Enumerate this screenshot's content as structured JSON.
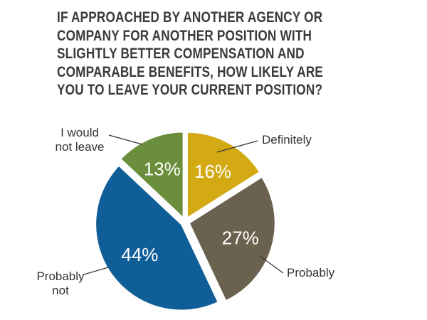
{
  "chart_data": {
    "type": "pie",
    "title_lines": [
      "IF APPROACHED BY ANOTHER AGENCY OR",
      "COMPANY FOR ANOTHER POSITION WITH",
      "SLIGHTLY BETTER COMPENSATION AND",
      "COMPARABLE BENEFITS, HOW LIKELY ARE",
      "YOU TO LEAVE YOUR CURRENT POSITION?"
    ],
    "slices": [
      {
        "label": [
          "Definitely"
        ],
        "value": 16,
        "data_label": "16%",
        "color": "#d3a914"
      },
      {
        "label": [
          "Probably"
        ],
        "value": 27,
        "data_label": "27%",
        "color": "#6a614f"
      },
      {
        "label": [
          "Probably",
          "not"
        ],
        "value": 44,
        "data_label": "44%",
        "color": "#0f5e98"
      },
      {
        "label": [
          "I would",
          "not leave"
        ],
        "value": 13,
        "data_label": "13%",
        "color": "#6a8e3b"
      }
    ],
    "start_angle": "12 o'clock",
    "direction": "clockwise",
    "legend": "none"
  }
}
